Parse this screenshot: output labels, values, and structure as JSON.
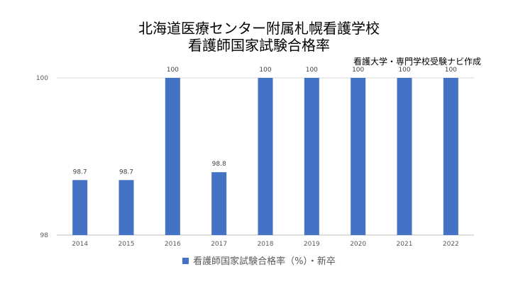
{
  "chart_data": {
    "type": "bar",
    "title_lines": [
      "北海道医療センター附属札幌看護学校",
      "看護師国家試験合格率"
    ],
    "credit": "看護大学・専門学校受験ナビ作成",
    "categories": [
      "2014",
      "2015",
      "2016",
      "2017",
      "2018",
      "2019",
      "2020",
      "2021",
      "2022"
    ],
    "series": [
      {
        "name": "看護師国家試験合格率（%）・新卒",
        "values": [
          98.7,
          98.7,
          100,
          98.8,
          100,
          100,
          100,
          100,
          100
        ],
        "labels": [
          "98.7",
          "98.7",
          "100",
          "98.8",
          "100",
          "100",
          "100",
          "100",
          "100"
        ]
      }
    ],
    "ylim": [
      98,
      100
    ],
    "y_ticks": [
      "98",
      "100"
    ],
    "grid": true,
    "legend_position": "bottom",
    "color": "#4472C4"
  }
}
